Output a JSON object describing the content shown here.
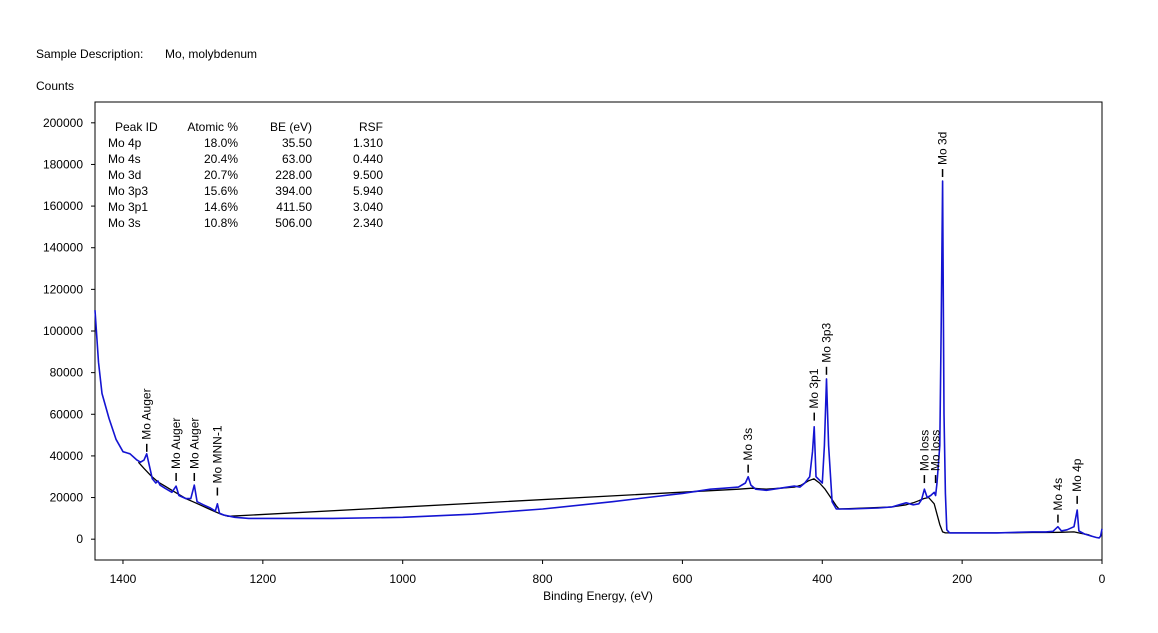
{
  "header": {
    "sample_label": "Sample Description:",
    "sample_value": "Mo, molybdenum"
  },
  "chart_data": {
    "type": "line",
    "ylabel": "Counts",
    "xlabel": "Binding Energy, (eV)",
    "xlim": [
      1440,
      0
    ],
    "ylim": [
      -10000,
      210000
    ],
    "x_ticks": [
      1400,
      1200,
      1000,
      800,
      600,
      400,
      200,
      0
    ],
    "y_ticks": [
      0,
      20000,
      40000,
      60000,
      80000,
      100000,
      120000,
      140000,
      160000,
      180000,
      200000
    ],
    "grid": false,
    "colors": {
      "spectrum": "#1414d2",
      "background": "#000000"
    },
    "table": {
      "headers": [
        "Peak ID",
        "Atomic %",
        "BE (eV)",
        "RSF"
      ],
      "rows": [
        [
          "Mo 4p",
          "18.0%",
          "35.50",
          "1.310"
        ],
        [
          "Mo 4s",
          "20.4%",
          "63.00",
          "0.440"
        ],
        [
          "Mo 3d",
          "20.7%",
          "228.00",
          "9.500"
        ],
        [
          "Mo 3p3",
          "15.6%",
          "394.00",
          "5.940"
        ],
        [
          "Mo 3p1",
          "14.6%",
          "411.50",
          "3.040"
        ],
        [
          "Mo 3s",
          "10.8%",
          "506.00",
          "2.340"
        ]
      ]
    },
    "peak_labels": [
      {
        "text": "Mo Auger",
        "x": 1366,
        "y": 41000
      },
      {
        "text": "Mo Auger",
        "x": 1324,
        "y": 27000
      },
      {
        "text": "Mo Auger",
        "x": 1298,
        "y": 27000
      },
      {
        "text": "Mo MNN-1",
        "x": 1265,
        "y": 20000
      },
      {
        "text": "Mo 3s",
        "x": 506,
        "y": 31000
      },
      {
        "text": "Mo 3p1",
        "x": 411.5,
        "y": 56000
      },
      {
        "text": "Mo 3p3",
        "x": 394,
        "y": 78000
      },
      {
        "text": "Mo loss",
        "x": 254,
        "y": 26000
      },
      {
        "text": "Mo loss",
        "x": 238,
        "y": 26000
      },
      {
        "text": "Mo 3d",
        "x": 228,
        "y": 173000
      },
      {
        "text": "Mo 4s",
        "x": 63,
        "y": 7000
      },
      {
        "text": "Mo 4p",
        "x": 35.5,
        "y": 16000
      }
    ],
    "series": [
      {
        "role": "spectrum",
        "x": [
          1440,
          1435,
          1430,
          1420,
          1410,
          1400,
          1390,
          1380,
          1375,
          1370,
          1366,
          1362,
          1358,
          1353,
          1350,
          1347,
          1340,
          1330,
          1324,
          1320,
          1310,
          1303,
          1298,
          1294,
          1285,
          1275,
          1268,
          1265,
          1262,
          1255,
          1240,
          1220,
          1200,
          1150,
          1100,
          1000,
          900,
          800,
          700,
          650,
          600,
          560,
          540,
          520,
          510,
          506,
          502,
          495,
          480,
          460,
          440,
          432,
          425,
          418,
          414,
          411.5,
          409,
          400,
          397,
          394,
          391,
          386,
          380,
          360,
          320,
          300,
          290,
          280,
          270,
          262,
          258,
          254,
          250,
          245,
          240,
          238,
          236,
          232,
          230,
          228,
          226,
          224,
          222,
          218,
          214,
          210,
          200,
          150,
          100,
          80,
          70,
          63,
          58,
          50,
          40,
          35.5,
          33,
          25,
          15,
          8,
          4,
          2,
          0
        ],
        "y": [
          110000,
          85000,
          70000,
          58000,
          48000,
          42000,
          41000,
          38000,
          37000,
          38000,
          41000,
          35000,
          29000,
          27000,
          28000,
          26000,
          24500,
          22500,
          25500,
          21000,
          19500,
          19500,
          26000,
          18000,
          16500,
          15000,
          13500,
          17000,
          12500,
          11500,
          10500,
          10000,
          10000,
          10000,
          10000,
          10500,
          12000,
          14500,
          18000,
          20000,
          22000,
          24000,
          24500,
          25000,
          27000,
          30000,
          26000,
          24000,
          23500,
          24500,
          25500,
          25000,
          27000,
          30000,
          42000,
          54000,
          30000,
          27000,
          45000,
          77000,
          45000,
          18000,
          14500,
          14500,
          15000,
          15500,
          16500,
          17500,
          16500,
          17000,
          19000,
          24000,
          20000,
          21000,
          22500,
          21000,
          27000,
          45000,
          103000,
          172000,
          60000,
          22000,
          4500,
          3000,
          3000,
          3000,
          3000,
          3000,
          3500,
          3500,
          3800,
          6000,
          4000,
          4500,
          6000,
          14000,
          4000,
          2500,
          1500,
          800,
          600,
          1500,
          5000
        ]
      },
      {
        "role": "background",
        "x": [
          1378,
          1370,
          1360,
          1350,
          1340,
          1330,
          1320,
          1310,
          1300,
          1290,
          1280,
          1270,
          1260,
          1250,
          520,
          500,
          480,
          460,
          440,
          430,
          420,
          412,
          404,
          396,
          388,
          380,
          376,
          300,
          280,
          270,
          262,
          255,
          248,
          240,
          236,
          232,
          228,
          224,
          220,
          150,
          100,
          80,
          60,
          40,
          30,
          20,
          15
        ],
        "y": [
          37000,
          34000,
          30500,
          27500,
          25500,
          23500,
          21500,
          19500,
          18000,
          16500,
          15000,
          13500,
          12000,
          11000,
          24000,
          24500,
          24000,
          24500,
          25000,
          26000,
          28000,
          29000,
          27000,
          24000,
          20000,
          16000,
          14500,
          15500,
          16500,
          17500,
          18500,
          19500,
          20000,
          17000,
          12000,
          7000,
          3500,
          3000,
          3000,
          3000,
          3200,
          3200,
          3300,
          3500,
          2800,
          2200,
          1500
        ]
      }
    ]
  }
}
